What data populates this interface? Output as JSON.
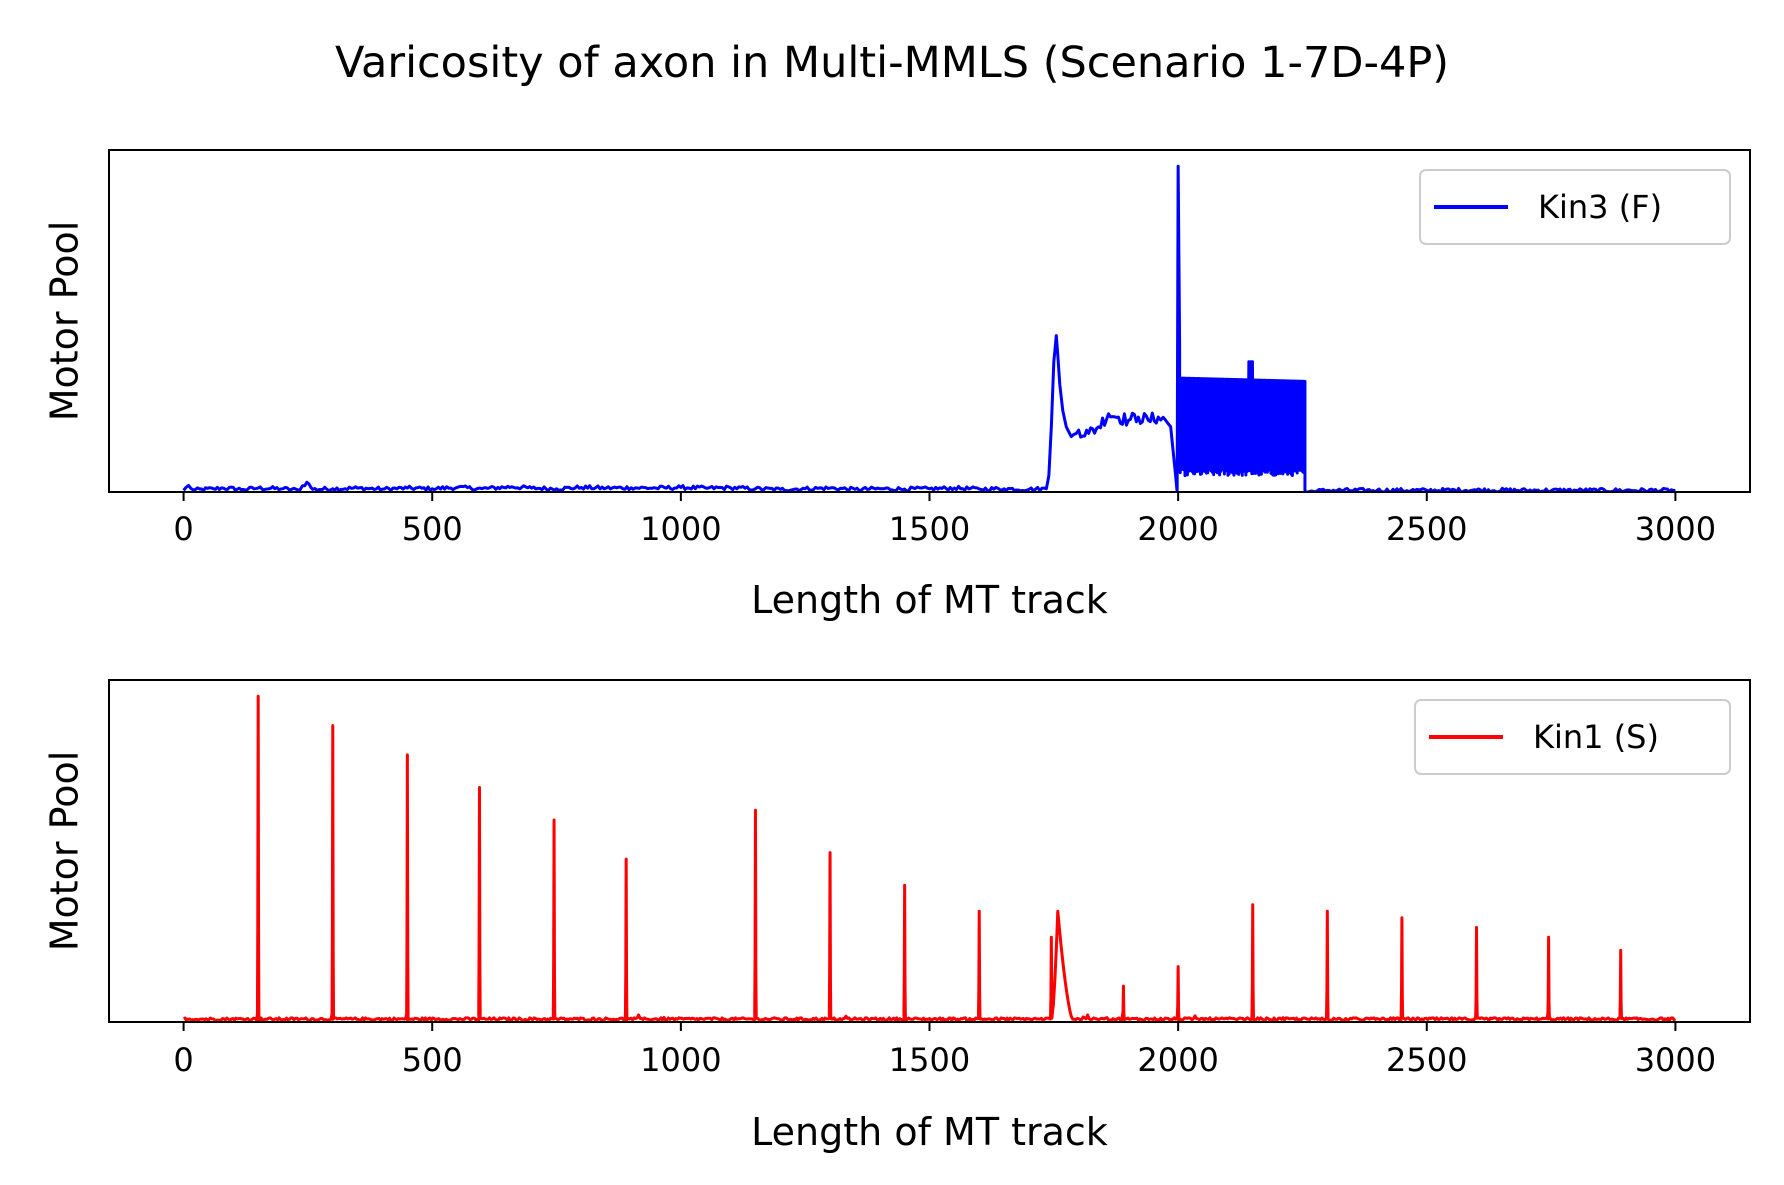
{
  "figure": {
    "title": "Varicosity of axon in Multi-MMLS (Scenario 1-7D-4P)"
  },
  "chart_data": [
    {
      "type": "line",
      "xlabel": "Length of MT track",
      "ylabel": "Motor Pool",
      "xlim": [
        -150,
        3150
      ],
      "ylim": [
        0,
        1.05
      ],
      "x_ticks": [
        0,
        500,
        1000,
        1500,
        2000,
        2500,
        3000
      ],
      "y_tick_labels_shown": false,
      "grid": false,
      "legend_position": "top-right",
      "series": [
        {
          "name": "Kin3 (F)",
          "color": "#0000ff",
          "points": [
            [
              0,
              0.005
            ],
            [
              10,
              0.02
            ],
            [
              20,
              0.006
            ],
            [
              60,
              0.01
            ],
            [
              80,
              0.012
            ],
            [
              120,
              0.008
            ],
            [
              150,
              0.012
            ],
            [
              200,
              0.01
            ],
            [
              230,
              0.006
            ],
            [
              248,
              0.03
            ],
            [
              260,
              0.008
            ],
            [
              300,
              0.01
            ],
            [
              350,
              0.012
            ],
            [
              400,
              0.009
            ],
            [
              450,
              0.012
            ],
            [
              500,
              0.01
            ],
            [
              550,
              0.014
            ],
            [
              600,
              0.01
            ],
            [
              660,
              0.016
            ],
            [
              700,
              0.012
            ],
            [
              750,
              0.01
            ],
            [
              800,
              0.014
            ],
            [
              850,
              0.012
            ],
            [
              900,
              0.013
            ],
            [
              950,
              0.012
            ],
            [
              1000,
              0.014
            ],
            [
              1050,
              0.012
            ],
            [
              1100,
              0.013
            ],
            [
              1150,
              0.01
            ],
            [
              1200,
              0.008
            ],
            [
              1250,
              0.01
            ],
            [
              1300,
              0.012
            ],
            [
              1350,
              0.008
            ],
            [
              1400,
              0.01
            ],
            [
              1450,
              0.009
            ],
            [
              1500,
              0.01
            ],
            [
              1550,
              0.012
            ],
            [
              1600,
              0.009
            ],
            [
              1650,
              0.01
            ],
            [
              1700,
              0.008
            ],
            [
              1735,
              0.01
            ],
            [
              1740,
              0.05
            ],
            [
              1745,
              0.2
            ],
            [
              1750,
              0.4
            ],
            [
              1755,
              0.48
            ],
            [
              1758,
              0.42
            ],
            [
              1762,
              0.33
            ],
            [
              1768,
              0.25
            ],
            [
              1775,
              0.2
            ],
            [
              1785,
              0.17
            ],
            [
              1800,
              0.19
            ],
            [
              1820,
              0.18
            ],
            [
              1840,
              0.2
            ],
            [
              1860,
              0.24
            ],
            [
              1880,
              0.23
            ],
            [
              1900,
              0.22
            ],
            [
              1920,
              0.23
            ],
            [
              1940,
              0.22
            ],
            [
              1960,
              0.23
            ],
            [
              1975,
              0.22
            ],
            [
              1985,
              0.2
            ],
            [
              1995,
              0.05
            ],
            [
              1998,
              0.0
            ],
            [
              2000,
              1.0
            ],
            [
              2003,
              0.45
            ],
            [
              2010,
              0.36
            ],
            [
              2050,
              0.35
            ],
            [
              2100,
              0.35
            ],
            [
              2140,
              0.34
            ],
            [
              2145,
              0.4
            ],
            [
              2150,
              0.35
            ],
            [
              2200,
              0.34
            ],
            [
              2250,
              0.34
            ],
            [
              2255,
              0.0
            ],
            [
              2300,
              0.005
            ],
            [
              2400,
              0.005
            ],
            [
              2500,
              0.005
            ],
            [
              2600,
              0.006
            ],
            [
              2700,
              0.005
            ],
            [
              2800,
              0.005
            ],
            [
              2900,
              0.005
            ],
            [
              3000,
              0.005
            ]
          ],
          "dense_band": {
            "x": [
              2000,
              2255
            ],
            "low": 0.05,
            "high": 0.35
          }
        }
      ]
    },
    {
      "type": "line",
      "xlabel": "Length of MT track",
      "ylabel": "Motor Pool",
      "xlim": [
        -150,
        3150
      ],
      "ylim": [
        0,
        1.05
      ],
      "x_ticks": [
        0,
        500,
        1000,
        1500,
        2000,
        2500,
        3000
      ],
      "y_tick_labels_shown": false,
      "grid": false,
      "legend_position": "top-right",
      "series": [
        {
          "name": "Kin1 (S)",
          "color": "#ff0000",
          "baseline": 0.005,
          "spikes": [
            [
              150,
              1.0
            ],
            [
              300,
              0.91
            ],
            [
              450,
              0.82
            ],
            [
              595,
              0.72
            ],
            [
              745,
              0.62
            ],
            [
              890,
              0.5
            ],
            [
              1150,
              0.65
            ],
            [
              1300,
              0.52
            ],
            [
              1450,
              0.42
            ],
            [
              1600,
              0.34
            ],
            [
              1745,
              0.26
            ],
            [
              1890,
              0.11
            ],
            [
              2000,
              0.17
            ],
            [
              2150,
              0.36
            ],
            [
              2300,
              0.34
            ],
            [
              2450,
              0.32
            ],
            [
              2600,
              0.29
            ],
            [
              2745,
              0.26
            ],
            [
              2890,
              0.22
            ]
          ],
          "bump": {
            "x": [
              1745,
              1790
            ],
            "peak_x": 1758,
            "peak": 0.34
          }
        }
      ]
    }
  ]
}
